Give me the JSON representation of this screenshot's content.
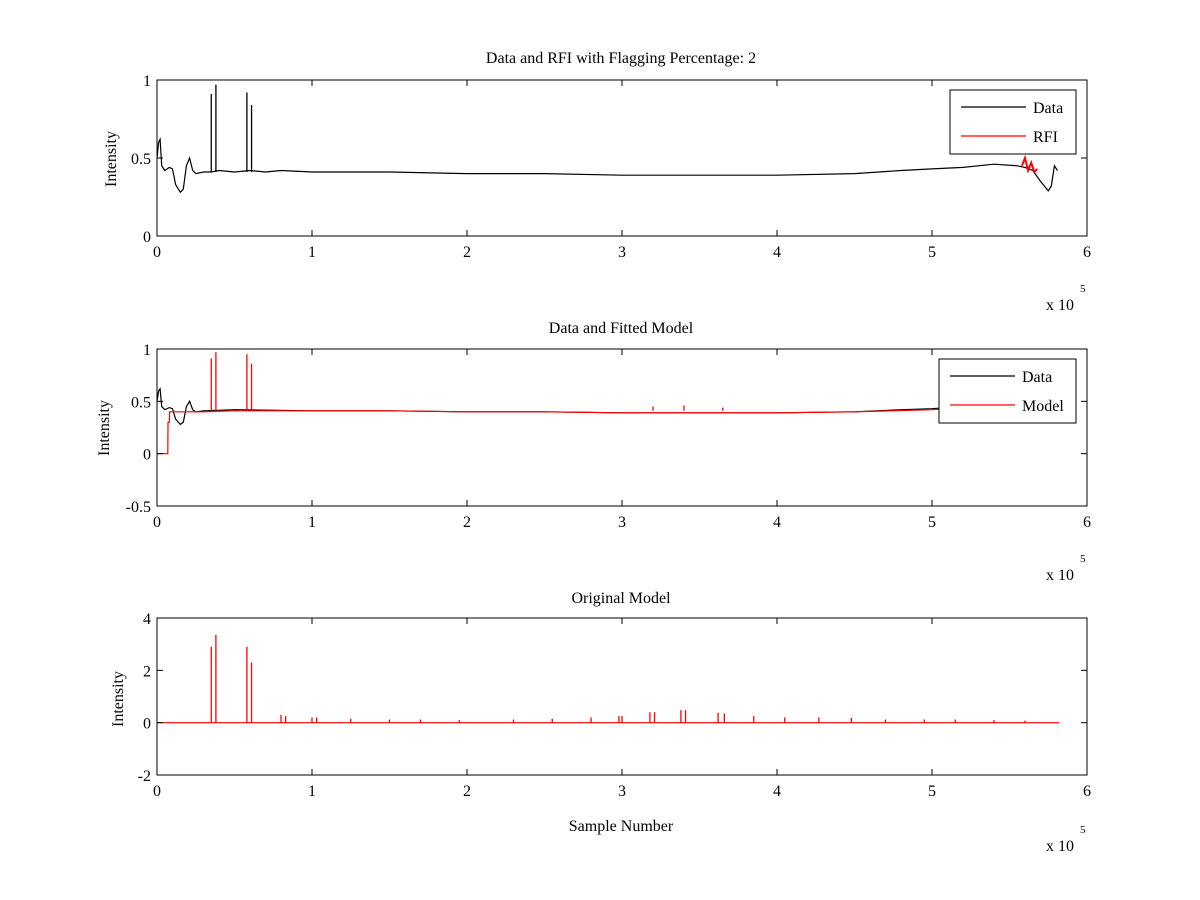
{
  "chart_data": [
    {
      "type": "line",
      "title": "Data and RFI with Flagging Percentage: 2",
      "xlabel": "",
      "ylabel": "Intensity",
      "xlim": [
        0,
        6
      ],
      "ylim": [
        0,
        1
      ],
      "xticks": [
        "0",
        "1",
        "2",
        "3",
        "4",
        "5",
        "6"
      ],
      "yticks": [
        "0",
        "0.5",
        "1"
      ],
      "x_multiplier": "x 10",
      "x_multiplier_exp": "5",
      "legend": {
        "position": "top-right",
        "entries": [
          "Data",
          "RFI"
        ]
      },
      "colors": {
        "Data": "#000000",
        "RFI": "#ff0000"
      },
      "series": [
        {
          "name": "Data",
          "x": [
            0,
            0.01,
            0.02,
            0.03,
            0.05,
            0.08,
            0.1,
            0.12,
            0.15,
            0.17,
            0.19,
            0.21,
            0.23,
            0.25,
            0.3,
            0.35,
            0.4,
            0.5,
            0.6,
            0.7,
            0.8,
            1.0,
            1.5,
            2.0,
            2.5,
            3.0,
            3.5,
            4.0,
            4.5,
            4.8,
            5.0,
            5.2,
            5.4,
            5.55,
            5.6,
            5.65,
            5.7,
            5.75,
            5.77,
            5.79,
            5.81
          ],
          "y": [
            0.5,
            0.6,
            0.62,
            0.45,
            0.42,
            0.44,
            0.43,
            0.33,
            0.28,
            0.3,
            0.45,
            0.5,
            0.42,
            0.4,
            0.41,
            0.41,
            0.42,
            0.41,
            0.42,
            0.41,
            0.42,
            0.41,
            0.41,
            0.4,
            0.4,
            0.39,
            0.39,
            0.39,
            0.4,
            0.42,
            0.43,
            0.44,
            0.46,
            0.45,
            0.44,
            0.42,
            0.35,
            0.29,
            0.32,
            0.45,
            0.42
          ]
        },
        {
          "name": "RFI",
          "x": [
            5.58,
            5.6,
            5.62,
            5.64,
            5.66,
            5.68
          ],
          "y": [
            0.45,
            0.5,
            0.42,
            0.47,
            0.41,
            0.43
          ]
        }
      ],
      "spikes": [
        {
          "x": 0.35,
          "y": 0.91
        },
        {
          "x": 0.38,
          "y": 0.97
        },
        {
          "x": 0.58,
          "y": 0.92
        },
        {
          "x": 0.61,
          "y": 0.84
        }
      ]
    },
    {
      "type": "line",
      "title": "Data and Fitted Model",
      "xlabel": "",
      "ylabel": "Intensity",
      "xlim": [
        0,
        6
      ],
      "ylim": [
        -0.5,
        1
      ],
      "xticks": [
        "0",
        "1",
        "2",
        "3",
        "4",
        "5",
        "6"
      ],
      "yticks": [
        "-0.5",
        "0",
        "0.5",
        "1"
      ],
      "x_multiplier": "x 10",
      "x_multiplier_exp": "5",
      "legend": {
        "position": "top-right",
        "entries": [
          "Data",
          "Model"
        ]
      },
      "colors": {
        "Data": "#000000",
        "Model": "#ff0000"
      },
      "series": [
        {
          "name": "Data",
          "x": [
            0,
            0.01,
            0.02,
            0.03,
            0.05,
            0.08,
            0.1,
            0.12,
            0.15,
            0.17,
            0.19,
            0.21,
            0.23,
            0.25,
            0.3,
            0.5,
            1.0,
            1.5,
            2.0,
            2.5,
            3.0,
            3.5,
            4.0,
            4.5,
            4.8,
            5.0,
            5.1
          ],
          "y": [
            0.5,
            0.6,
            0.62,
            0.45,
            0.42,
            0.44,
            0.43,
            0.33,
            0.28,
            0.3,
            0.45,
            0.5,
            0.42,
            0.4,
            0.41,
            0.42,
            0.41,
            0.41,
            0.4,
            0.4,
            0.39,
            0.39,
            0.39,
            0.4,
            0.42,
            0.43,
            0.44
          ]
        },
        {
          "name": "Model",
          "x": [
            0,
            0.07,
            0.071,
            0.08,
            0.081,
            0.15,
            0.3,
            0.5,
            1.0,
            1.5,
            2.0,
            2.5,
            3.0,
            3.5,
            4.0,
            4.5,
            5.0,
            5.1
          ],
          "y": [
            0,
            0,
            0.3,
            0.3,
            0.4,
            0.4,
            0.4,
            0.41,
            0.41,
            0.41,
            0.4,
            0.4,
            0.39,
            0.39,
            0.39,
            0.4,
            0.42,
            0.43
          ]
        }
      ],
      "spikes": [
        {
          "x": 0.35,
          "y": 0.91
        },
        {
          "x": 0.38,
          "y": 0.97
        },
        {
          "x": 0.58,
          "y": 0.95
        },
        {
          "x": 0.61,
          "y": 0.86
        },
        {
          "x": 3.2,
          "y": 0.45
        },
        {
          "x": 3.4,
          "y": 0.46
        },
        {
          "x": 3.65,
          "y": 0.44
        }
      ]
    },
    {
      "type": "line",
      "title": "Original Model",
      "xlabel": "Sample Number",
      "ylabel": "Intensity",
      "xlim": [
        0,
        6
      ],
      "ylim": [
        -2,
        4
      ],
      "xticks": [
        "0",
        "1",
        "2",
        "3",
        "4",
        "5",
        "6"
      ],
      "yticks": [
        "-2",
        "0",
        "2",
        "4"
      ],
      "x_multiplier": "x 10",
      "x_multiplier_exp": "5",
      "colors": {
        "Model": "#ff0000"
      },
      "series": [
        {
          "name": "",
          "x": [
            0,
            5.82
          ],
          "y": [
            0,
            0
          ]
        }
      ],
      "spikes": [
        {
          "x": 0.35,
          "y": 2.9
        },
        {
          "x": 0.38,
          "y": 3.35
        },
        {
          "x": 0.58,
          "y": 2.9
        },
        {
          "x": 0.61,
          "y": 2.3
        },
        {
          "x": 0.8,
          "y": 0.3
        },
        {
          "x": 0.83,
          "y": 0.25
        },
        {
          "x": 1.0,
          "y": 0.2
        },
        {
          "x": 1.03,
          "y": 0.2
        },
        {
          "x": 1.25,
          "y": 0.15
        },
        {
          "x": 1.5,
          "y": 0.12
        },
        {
          "x": 1.7,
          "y": 0.12
        },
        {
          "x": 1.95,
          "y": 0.1
        },
        {
          "x": 2.3,
          "y": 0.12
        },
        {
          "x": 2.55,
          "y": 0.15
        },
        {
          "x": 2.8,
          "y": 0.2
        },
        {
          "x": 2.98,
          "y": 0.25
        },
        {
          "x": 3.0,
          "y": 0.25
        },
        {
          "x": 3.18,
          "y": 0.4
        },
        {
          "x": 3.21,
          "y": 0.4
        },
        {
          "x": 3.38,
          "y": 0.48
        },
        {
          "x": 3.41,
          "y": 0.48
        },
        {
          "x": 3.62,
          "y": 0.38
        },
        {
          "x": 3.66,
          "y": 0.35
        },
        {
          "x": 3.85,
          "y": 0.25
        },
        {
          "x": 4.05,
          "y": 0.2
        },
        {
          "x": 4.27,
          "y": 0.2
        },
        {
          "x": 4.48,
          "y": 0.18
        },
        {
          "x": 4.7,
          "y": 0.12
        },
        {
          "x": 4.95,
          "y": 0.12
        },
        {
          "x": 5.15,
          "y": 0.12
        },
        {
          "x": 5.4,
          "y": 0.1
        },
        {
          "x": 5.6,
          "y": 0.08
        }
      ]
    }
  ]
}
